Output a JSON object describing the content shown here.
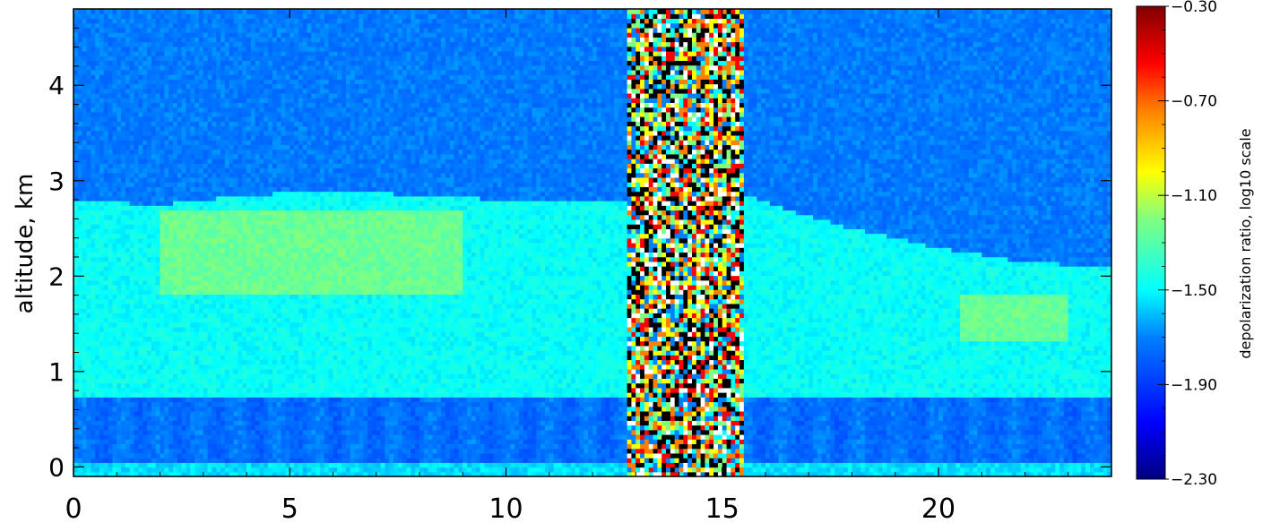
{
  "chart_data": [
    {
      "type": "heatmap",
      "title": "",
      "xlabel": "",
      "ylabel": "altitude, km",
      "xlim": [
        0,
        24
      ],
      "ylim": [
        -0.1,
        4.8
      ],
      "x_ticks": [
        0,
        5,
        10,
        15,
        20
      ],
      "x_tick_labels": [
        "0",
        "5",
        "10",
        "15",
        "20"
      ],
      "y_ticks": [
        0,
        1,
        2,
        3,
        4
      ],
      "y_tick_labels": [
        "0",
        "1",
        "2",
        "3",
        "4"
      ],
      "colorbar": {
        "label": "depolarization ratio, log10 scale",
        "range": [
          -2.3,
          -0.3
        ],
        "ticks": [
          -0.3,
          -0.7,
          -1.1,
          -1.5,
          -1.9,
          -2.3
        ],
        "tick_labels": [
          "−0.30",
          "−0.70",
          "−1.10",
          "−1.50",
          "−1.90",
          "−2.30"
        ],
        "colormap": "rainbow (dark blue → blue → cyan → green → yellow → orange → red → dark red)"
      },
      "description_layers": [
        {
          "altitude_range_km": [
            -0.1,
            0.05
          ],
          "log10_depol": -1.55
        },
        {
          "altitude_range_km": [
            0.05,
            0.75
          ],
          "log10_depol": -1.75
        },
        {
          "altitude_range_km": [
            0.75,
            2.8
          ],
          "log10_depol": -1.45
        },
        {
          "altitude_range_km": [
            2.8,
            4.8
          ],
          "log10_depol": -1.72
        }
      ],
      "aerosol_layer_top_km": [
        {
          "x": 0,
          "top": 2.8
        },
        {
          "x": 2,
          "top": 2.75
        },
        {
          "x": 4,
          "top": 2.85
        },
        {
          "x": 6,
          "top": 2.9
        },
        {
          "x": 8,
          "top": 2.85
        },
        {
          "x": 10,
          "top": 2.8
        },
        {
          "x": 12,
          "top": 2.8
        },
        {
          "x": 15.6,
          "top": 2.85
        },
        {
          "x": 16.5,
          "top": 2.7
        },
        {
          "x": 18,
          "top": 2.5
        },
        {
          "x": 20,
          "top": 2.3
        },
        {
          "x": 22,
          "top": 2.15
        },
        {
          "x": 24,
          "top": 2.1
        }
      ],
      "enhanced_regions": [
        {
          "x_range": [
            2,
            9
          ],
          "altitude_range_km": [
            1.8,
            2.7
          ],
          "log10_depol": -1.3
        },
        {
          "x_range": [
            20.5,
            23
          ],
          "altitude_range_km": [
            1.3,
            1.8
          ],
          "log10_depol": -1.3
        }
      ],
      "noise_band": {
        "x_range": [
          12.8,
          15.5
        ],
        "note": "saturated / noisy data"
      }
    }
  ]
}
